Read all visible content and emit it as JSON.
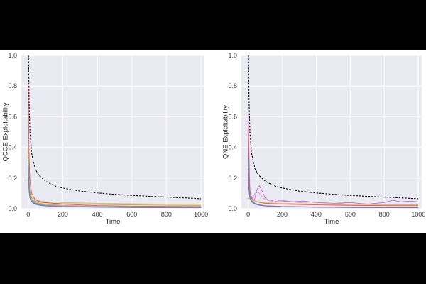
{
  "colors": {
    "page_bg": "#000000",
    "figure_bg": "#ffffff",
    "plot_bg": "#eaeaf2",
    "grid": "#ffffff",
    "reference_line": "#000000"
  },
  "chart_data": [
    {
      "type": "line",
      "xlabel": "Time",
      "ylabel": "QCCE Exploitability",
      "xlim": [
        -40,
        1020
      ],
      "ylim": [
        0,
        1.0
      ],
      "xticks": [
        "0",
        "200",
        "400",
        "600",
        "800",
        "1000"
      ],
      "yticks": [
        "0.0",
        "0.2",
        "0.4",
        "0.6",
        "0.8",
        "1.0"
      ],
      "grid": true,
      "legend": "none",
      "series": [
        {
          "style": "dashed",
          "color": "#000000",
          "x": [
            1,
            2,
            5,
            10,
            20,
            40,
            60,
            100,
            150,
            200,
            300,
            400,
            500,
            600,
            700,
            800,
            900,
            1000
          ],
          "y": [
            1.0,
            0.99,
            0.7,
            0.5,
            0.36,
            0.26,
            0.22,
            0.18,
            0.15,
            0.135,
            0.115,
            0.103,
            0.094,
            0.087,
            0.081,
            0.076,
            0.071,
            0.065
          ]
        },
        {
          "color": "#e8b83a",
          "x": [
            0,
            5,
            10,
            20,
            40,
            70,
            100,
            200,
            400,
            600,
            800,
            1000
          ],
          "y": [
            0.3,
            0.18,
            0.12,
            0.08,
            0.06,
            0.05,
            0.045,
            0.04,
            0.035,
            0.032,
            0.03,
            0.03
          ]
        },
        {
          "color": "#b5a05a",
          "x": [
            0,
            5,
            10,
            20,
            40,
            70,
            100,
            200,
            400,
            600,
            800,
            1000
          ],
          "y": [
            0.35,
            0.16,
            0.1,
            0.07,
            0.05,
            0.042,
            0.038,
            0.033,
            0.028,
            0.025,
            0.023,
            0.022
          ]
        },
        {
          "color": "#e05060",
          "x": [
            0,
            3,
            6,
            10,
            20,
            40,
            70,
            100,
            200,
            400,
            600,
            800,
            1000
          ],
          "y": [
            0.82,
            0.5,
            0.3,
            0.18,
            0.1,
            0.06,
            0.045,
            0.04,
            0.03,
            0.02,
            0.017,
            0.015,
            0.014
          ]
        },
        {
          "color": "#d9a23e",
          "x": [
            0,
            5,
            10,
            20,
            40,
            70,
            100,
            200,
            400,
            600,
            800,
            1000
          ],
          "y": [
            0.4,
            0.2,
            0.12,
            0.07,
            0.045,
            0.035,
            0.03,
            0.022,
            0.016,
            0.013,
            0.012,
            0.011
          ]
        },
        {
          "color": "#e98fc9",
          "x": [
            0,
            5,
            10,
            20,
            40,
            70,
            100,
            200,
            400,
            600,
            800,
            1000
          ],
          "y": [
            0.3,
            0.15,
            0.09,
            0.06,
            0.04,
            0.03,
            0.025,
            0.02,
            0.015,
            0.012,
            0.011,
            0.01
          ]
        },
        {
          "color": "#6fa8dc",
          "x": [
            0,
            5,
            10,
            20,
            40,
            70,
            100,
            200,
            400,
            600,
            800,
            1000
          ],
          "y": [
            0.3,
            0.14,
            0.08,
            0.05,
            0.035,
            0.025,
            0.02,
            0.015,
            0.012,
            0.01,
            0.009,
            0.008
          ]
        },
        {
          "color": "#4db6a8",
          "x": [
            0,
            5,
            10,
            20,
            40,
            70,
            100,
            200,
            400,
            600,
            800,
            1000
          ],
          "y": [
            0.32,
            0.15,
            0.09,
            0.055,
            0.038,
            0.028,
            0.022,
            0.016,
            0.012,
            0.01,
            0.009,
            0.008
          ]
        },
        {
          "color": "#3c9b6e",
          "x": [
            0,
            5,
            10,
            20,
            40,
            70,
            100,
            200,
            400,
            600,
            800,
            1000
          ],
          "y": [
            0.28,
            0.12,
            0.07,
            0.045,
            0.03,
            0.022,
            0.018,
            0.013,
            0.01,
            0.008,
            0.007,
            0.007
          ]
        },
        {
          "color": "#8c6bb1",
          "x": [
            0,
            5,
            10,
            20,
            40,
            70,
            100,
            200,
            400,
            600,
            800,
            1000
          ],
          "y": [
            0.25,
            0.11,
            0.07,
            0.045,
            0.03,
            0.022,
            0.018,
            0.013,
            0.01,
            0.008,
            0.007,
            0.006
          ]
        },
        {
          "color": "#5b8fbf",
          "x": [
            0,
            5,
            10,
            20,
            40,
            70,
            100,
            200,
            400,
            600,
            800,
            1000
          ],
          "y": [
            0.27,
            0.12,
            0.075,
            0.05,
            0.033,
            0.024,
            0.019,
            0.014,
            0.011,
            0.009,
            0.008,
            0.007
          ]
        }
      ]
    },
    {
      "type": "line",
      "xlabel": "Time",
      "ylabel": "QNE Exploitability",
      "xlim": [
        -40,
        1020
      ],
      "ylim": [
        0,
        1.0
      ],
      "xticks": [
        "0",
        "200",
        "400",
        "600",
        "800",
        "1000"
      ],
      "yticks": [
        "0.0",
        "0.2",
        "0.4",
        "0.6",
        "0.8",
        "1.0"
      ],
      "grid": true,
      "legend": "none",
      "series": [
        {
          "style": "dashed",
          "color": "#000000",
          "x": [
            1,
            2,
            5,
            10,
            20,
            40,
            60,
            100,
            150,
            200,
            300,
            400,
            500,
            600,
            700,
            800,
            900,
            1000
          ],
          "y": [
            1.0,
            0.99,
            0.7,
            0.5,
            0.36,
            0.26,
            0.22,
            0.18,
            0.15,
            0.135,
            0.115,
            0.103,
            0.094,
            0.087,
            0.081,
            0.076,
            0.071,
            0.065
          ]
        },
        {
          "color": "#cc66cc",
          "x": [
            0,
            10,
            20,
            35,
            50,
            65,
            80,
            100,
            130,
            160,
            200,
            260,
            320,
            400,
            500,
            600,
            700,
            800,
            850,
            900,
            950,
            1000
          ],
          "y": [
            0.6,
            0.12,
            0.06,
            0.05,
            0.12,
            0.15,
            0.12,
            0.07,
            0.05,
            0.06,
            0.05,
            0.045,
            0.05,
            0.04,
            0.035,
            0.04,
            0.03,
            0.04,
            0.055,
            0.045,
            0.05,
            0.045
          ]
        },
        {
          "color": "#d98fd9",
          "x": [
            0,
            10,
            25,
            40,
            60,
            80,
            100,
            150,
            200,
            300,
            400,
            500,
            600,
            800,
            1000
          ],
          "y": [
            0.4,
            0.1,
            0.07,
            0.1,
            0.11,
            0.08,
            0.06,
            0.045,
            0.055,
            0.04,
            0.045,
            0.035,
            0.03,
            0.028,
            0.025
          ]
        },
        {
          "color": "#e05060",
          "x": [
            0,
            3,
            6,
            10,
            20,
            40,
            70,
            100,
            200,
            400,
            600,
            800,
            1000
          ],
          "y": [
            0.55,
            0.3,
            0.18,
            0.12,
            0.07,
            0.05,
            0.04,
            0.035,
            0.03,
            0.025,
            0.022,
            0.02,
            0.02
          ]
        },
        {
          "color": "#e8b83a",
          "x": [
            -5,
            20,
            40,
            70,
            100,
            200,
            400,
            600,
            800,
            1000
          ],
          "y": [
            0.07,
            0.06,
            0.05,
            0.045,
            0.04,
            0.035,
            0.03,
            0.028,
            0.026,
            0.025
          ]
        },
        {
          "color": "#4db6a8",
          "x": [
            0,
            5,
            10,
            20,
            40,
            70,
            100,
            200,
            400,
            600,
            800,
            1000
          ],
          "y": [
            0.33,
            0.15,
            0.09,
            0.055,
            0.035,
            0.025,
            0.02,
            0.015,
            0.011,
            0.009,
            0.008,
            0.008
          ]
        },
        {
          "color": "#3c9b6e",
          "x": [
            0,
            5,
            10,
            20,
            40,
            70,
            100,
            200,
            400,
            600,
            800,
            1000
          ],
          "y": [
            0.28,
            0.12,
            0.07,
            0.045,
            0.03,
            0.022,
            0.018,
            0.013,
            0.01,
            0.008,
            0.007,
            0.007
          ]
        },
        {
          "color": "#5b8fbf",
          "x": [
            0,
            5,
            10,
            20,
            40,
            70,
            100,
            200,
            400,
            600,
            800,
            1000
          ],
          "y": [
            0.27,
            0.12,
            0.075,
            0.05,
            0.033,
            0.024,
            0.019,
            0.014,
            0.011,
            0.009,
            0.008,
            0.007
          ]
        },
        {
          "color": "#8c6bb1",
          "x": [
            0,
            5,
            10,
            20,
            40,
            70,
            100,
            200,
            400,
            600,
            800,
            1000
          ],
          "y": [
            0.25,
            0.11,
            0.07,
            0.045,
            0.03,
            0.022,
            0.018,
            0.013,
            0.01,
            0.008,
            0.007,
            0.006
          ]
        }
      ]
    }
  ]
}
